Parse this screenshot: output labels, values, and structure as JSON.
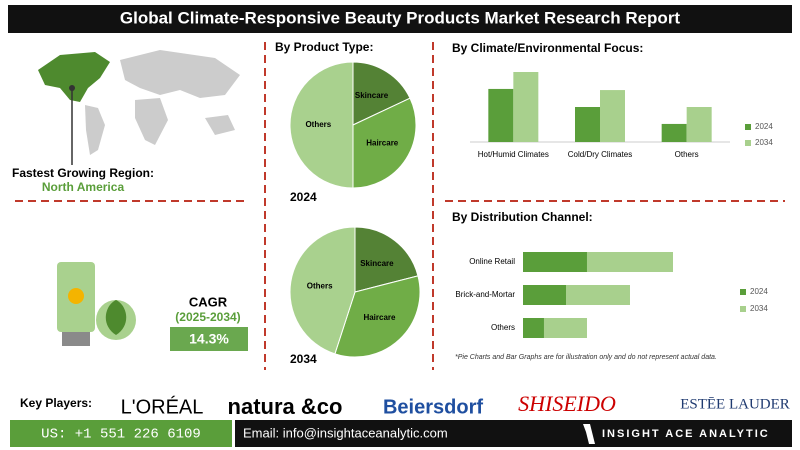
{
  "header": {
    "title": "Global Climate-Responsive Beauty Products Market Research Report"
  },
  "region": {
    "label": "Fastest Growing Region:",
    "value": "North America"
  },
  "cagr": {
    "label": "CAGR",
    "period": "(2025-2034)",
    "value": "14.3%"
  },
  "chart_data": [
    {
      "type": "pie",
      "title": "By Product Type:",
      "subtitle": "2024",
      "categories": [
        "Skincare",
        "Haircare",
        "Others"
      ],
      "values": [
        18,
        32,
        50
      ],
      "colors": [
        "#548235",
        "#70ad47",
        "#a9d18e"
      ]
    },
    {
      "type": "pie",
      "subtitle": "2034",
      "categories": [
        "Skincare",
        "Haircare",
        "Others"
      ],
      "values": [
        21,
        34,
        45
      ],
      "colors": [
        "#548235",
        "#70ad47",
        "#a9d18e"
      ]
    },
    {
      "type": "bar",
      "title": "By Climate/Environmental Focus:",
      "categories": [
        "Hot/Humid Climates",
        "Cold/Dry Climates",
        "Others"
      ],
      "series": [
        {
          "name": "2024",
          "color": "#5a9e3a",
          "values": [
            47,
            31,
            16
          ]
        },
        {
          "name": "2034",
          "color": "#a8d08d",
          "values": [
            62,
            46,
            31
          ]
        }
      ]
    },
    {
      "type": "stacked-barh",
      "title": "By Distribution Channel:",
      "categories": [
        "Online Retail",
        "Brick-and-Mortar",
        "Others"
      ],
      "series": [
        {
          "name": "2024",
          "color": "#5a9e3a",
          "values": [
            61,
            41,
            20
          ]
        },
        {
          "name": "2034",
          "color": "#a8d08d",
          "values": [
            82,
            61,
            41
          ]
        }
      ]
    }
  ],
  "note": "*Pie Charts and Bar Graphs are for illustration only and do not represent actual data.",
  "key_players": {
    "label": "Key Players:",
    "names": [
      "L'ORÉAL",
      "natura &co",
      "Beiersdorf",
      "SHISEIDO",
      "ESTĒE LAUDER"
    ]
  },
  "footer": {
    "phone": "US: +1 551 226 6109",
    "email": "Email: info@insightaceanalytic.com",
    "brand": "INSIGHT ACE ANALYTIC"
  }
}
